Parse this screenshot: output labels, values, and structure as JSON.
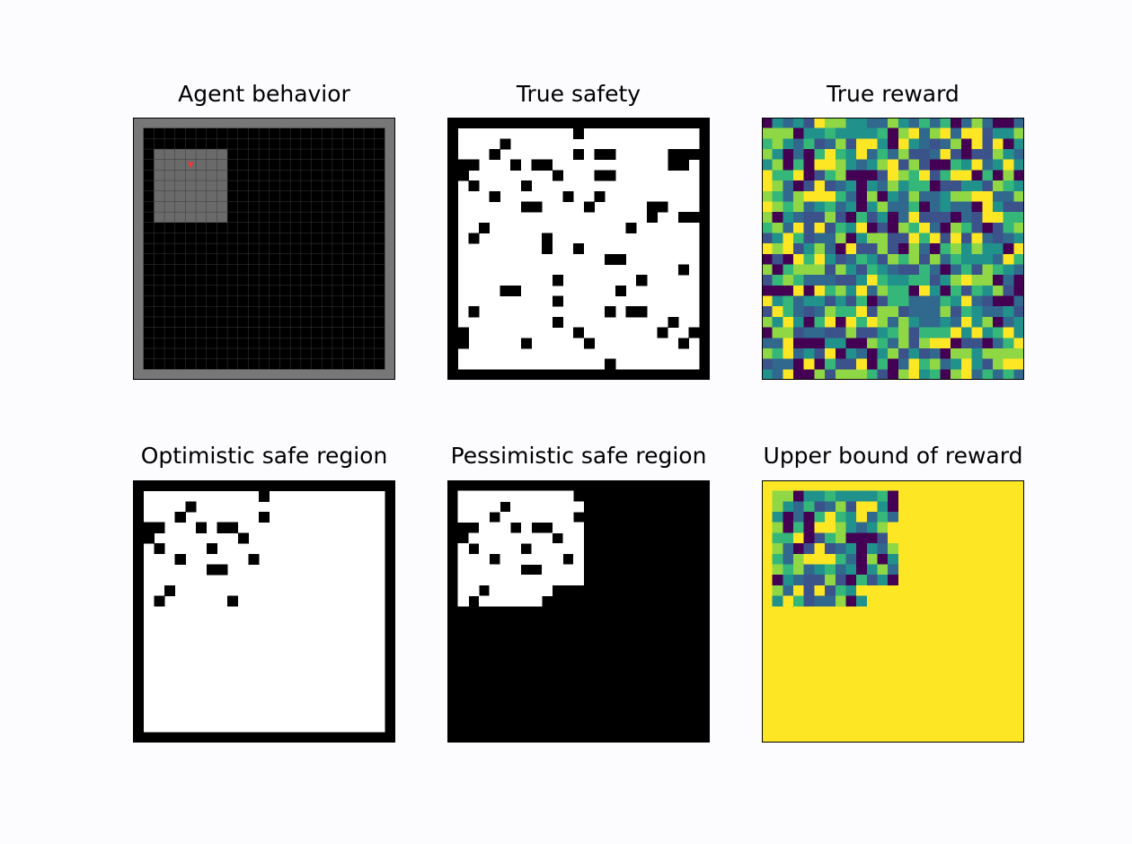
{
  "figure": {
    "panels": [
      {
        "id": "agent",
        "title": "Agent behavior"
      },
      {
        "id": "safety",
        "title": "True safety"
      },
      {
        "id": "reward",
        "title": "True reward"
      },
      {
        "id": "optimistic",
        "title": "Optimistic safe region"
      },
      {
        "id": "pessimistic",
        "title": "Pessimistic safe region"
      },
      {
        "id": "upper",
        "title": "Upper bound of reward"
      }
    ]
  },
  "grid_size": 25,
  "agent_view": {
    "col_range": [
      2,
      8
    ],
    "row_range": [
      4,
      10
    ],
    "agent_cell": [
      5,
      5
    ]
  },
  "colors": {
    "agent_border": "#777777",
    "agent_floor": "#000000",
    "agent_view": "#6a6a6a",
    "agent_marker": "#e83b3b",
    "safe": "#ffffff",
    "unsafe": "#000000",
    "reward_palette": [
      "#440154",
      "#3b528b",
      "#31688e",
      "#21918c",
      "#35b779",
      "#8fd744",
      "#fde725"
    ],
    "reward_max": "#fde725"
  },
  "unsafe_cells": [
    [
      1,
      1
    ],
    [
      1,
      2
    ],
    [
      1,
      3
    ],
    [
      1,
      4
    ],
    [
      1,
      5
    ],
    [
      1,
      6
    ],
    [
      1,
      7
    ],
    [
      1,
      8
    ],
    [
      1,
      9
    ],
    [
      1,
      10
    ],
    [
      1,
      11
    ],
    [
      1,
      12
    ],
    [
      1,
      13
    ],
    [
      1,
      14
    ],
    [
      1,
      15
    ],
    [
      1,
      16
    ],
    [
      1,
      17
    ],
    [
      1,
      18
    ],
    [
      1,
      19
    ],
    [
      1,
      20
    ],
    [
      1,
      21
    ],
    [
      1,
      22
    ],
    [
      1,
      23
    ],
    [
      1,
      24
    ],
    [
      1,
      25
    ],
    [
      25,
      1
    ],
    [
      25,
      2
    ],
    [
      25,
      3
    ],
    [
      25,
      4
    ],
    [
      25,
      5
    ],
    [
      25,
      6
    ],
    [
      25,
      7
    ],
    [
      25,
      8
    ],
    [
      25,
      9
    ],
    [
      25,
      10
    ],
    [
      25,
      11
    ],
    [
      25,
      12
    ],
    [
      25,
      13
    ],
    [
      25,
      14
    ],
    [
      25,
      15
    ],
    [
      25,
      16
    ],
    [
      25,
      17
    ],
    [
      25,
      18
    ],
    [
      25,
      19
    ],
    [
      25,
      20
    ],
    [
      25,
      21
    ],
    [
      25,
      22
    ],
    [
      25,
      23
    ],
    [
      25,
      24
    ],
    [
      25,
      25
    ],
    [
      2,
      1
    ],
    [
      3,
      1
    ],
    [
      4,
      1
    ],
    [
      5,
      1
    ],
    [
      6,
      1
    ],
    [
      7,
      1
    ],
    [
      8,
      1
    ],
    [
      9,
      1
    ],
    [
      10,
      1
    ],
    [
      11,
      1
    ],
    [
      12,
      1
    ],
    [
      13,
      1
    ],
    [
      14,
      1
    ],
    [
      15,
      1
    ],
    [
      16,
      1
    ],
    [
      17,
      1
    ],
    [
      18,
      1
    ],
    [
      19,
      1
    ],
    [
      20,
      1
    ],
    [
      21,
      1
    ],
    [
      22,
      1
    ],
    [
      23,
      1
    ],
    [
      24,
      1
    ],
    [
      2,
      25
    ],
    [
      3,
      25
    ],
    [
      4,
      25
    ],
    [
      5,
      25
    ],
    [
      6,
      25
    ],
    [
      7,
      25
    ],
    [
      8,
      25
    ],
    [
      9,
      25
    ],
    [
      10,
      25
    ],
    [
      11,
      25
    ],
    [
      12,
      25
    ],
    [
      13,
      25
    ],
    [
      14,
      25
    ],
    [
      15,
      25
    ],
    [
      16,
      25
    ],
    [
      17,
      25
    ],
    [
      18,
      25
    ],
    [
      19,
      25
    ],
    [
      20,
      25
    ],
    [
      21,
      25
    ],
    [
      22,
      25
    ],
    [
      23,
      25
    ],
    [
      24,
      25
    ],
    [
      2,
      13
    ],
    [
      3,
      6
    ],
    [
      4,
      5
    ],
    [
      4,
      13
    ],
    [
      4,
      15
    ],
    [
      4,
      16
    ],
    [
      4,
      22
    ],
    [
      4,
      23
    ],
    [
      4,
      24
    ],
    [
      5,
      2
    ],
    [
      5,
      3
    ],
    [
      5,
      7
    ],
    [
      5,
      9
    ],
    [
      5,
      10
    ],
    [
      5,
      22
    ],
    [
      5,
      23
    ],
    [
      6,
      2
    ],
    [
      6,
      11
    ],
    [
      6,
      15
    ],
    [
      6,
      16
    ],
    [
      7,
      3
    ],
    [
      7,
      8
    ],
    [
      8,
      5
    ],
    [
      8,
      12
    ],
    [
      8,
      15
    ],
    [
      9,
      8
    ],
    [
      9,
      9
    ],
    [
      9,
      14
    ],
    [
      9,
      20
    ],
    [
      9,
      21
    ],
    [
      10,
      20
    ],
    [
      10,
      23
    ],
    [
      10,
      24
    ],
    [
      11,
      4
    ],
    [
      11,
      18
    ],
    [
      12,
      3
    ],
    [
      12,
      10
    ],
    [
      13,
      10
    ],
    [
      13,
      13
    ],
    [
      14,
      16
    ],
    [
      14,
      17
    ],
    [
      15,
      23
    ],
    [
      16,
      11
    ],
    [
      16,
      19
    ],
    [
      17,
      6
    ],
    [
      17,
      7
    ],
    [
      17,
      17
    ],
    [
      18,
      11
    ],
    [
      19,
      3
    ],
    [
      19,
      16
    ],
    [
      19,
      18
    ],
    [
      19,
      19
    ],
    [
      20,
      11
    ],
    [
      20,
      22
    ],
    [
      21,
      2
    ],
    [
      21,
      13
    ],
    [
      21,
      21
    ],
    [
      21,
      24
    ],
    [
      22,
      2
    ],
    [
      22,
      8
    ],
    [
      22,
      14
    ],
    [
      22,
      23
    ],
    [
      24,
      16
    ]
  ]
}
